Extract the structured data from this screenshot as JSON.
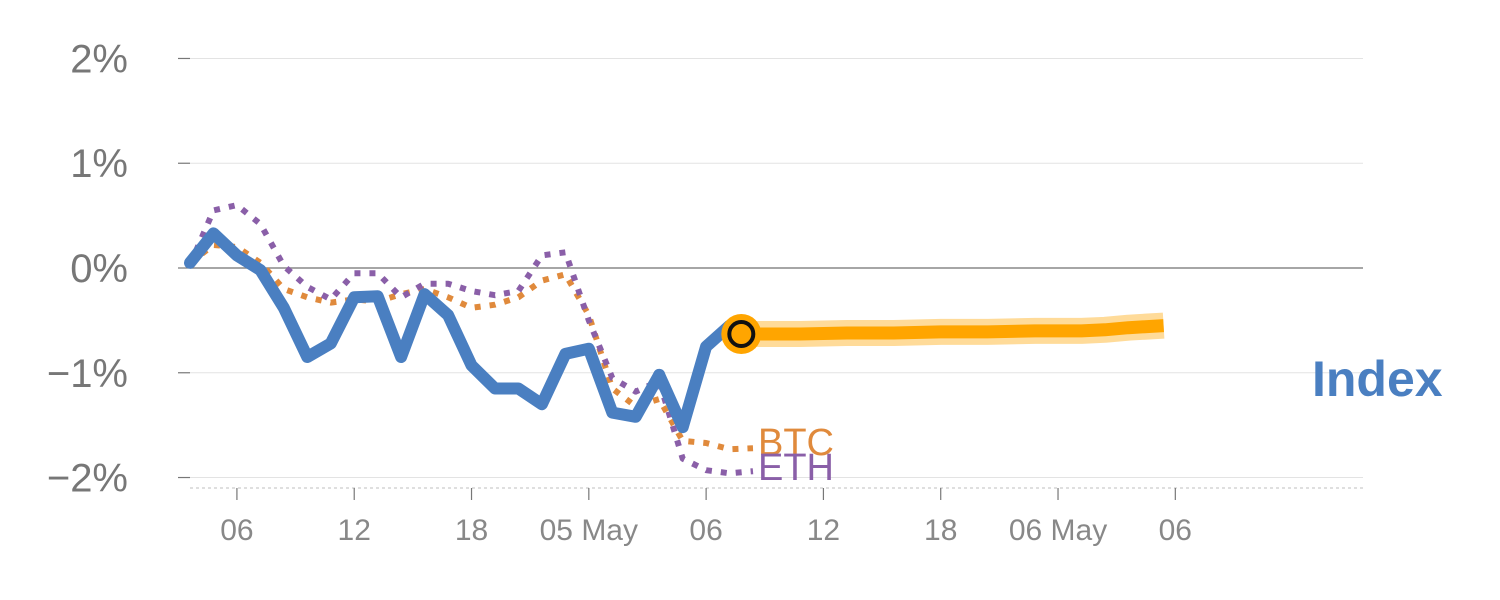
{
  "chart_data": {
    "type": "line",
    "ylim": [
      -2.1,
      2.1
    ],
    "yticks": [
      {
        "value": 2,
        "label": "2%"
      },
      {
        "value": 1,
        "label": "1%"
      },
      {
        "value": 0,
        "label": "0%"
      },
      {
        "value": -1,
        "label": "−1%"
      },
      {
        "value": -2,
        "label": "−2%"
      }
    ],
    "xlim": [
      0,
      50
    ],
    "xticks": [
      {
        "value": 2,
        "label": "06"
      },
      {
        "value": 7,
        "label": "12"
      },
      {
        "value": 12,
        "label": "18"
      },
      {
        "value": 17,
        "label": "05 May"
      },
      {
        "value": 22,
        "label": "06"
      },
      {
        "value": 27,
        "label": "12"
      },
      {
        "value": 32,
        "label": "18"
      },
      {
        "value": 37,
        "label": "06 May"
      },
      {
        "value": 42,
        "label": "06"
      }
    ],
    "series": [
      {
        "name": "Index",
        "color": "#4a7fc1",
        "style": "solid",
        "x": [
          0,
          1,
          2,
          3,
          4,
          5,
          6,
          7,
          8,
          9,
          10,
          11,
          12,
          13,
          14,
          15,
          16,
          17,
          18,
          19,
          20
        ],
        "y": [
          0.05,
          0.33,
          0.12,
          -0.02,
          -0.38,
          -0.85,
          -0.72,
          -0.28,
          -0.27,
          -0.85,
          -0.25,
          -0.45,
          -0.93,
          -1.15,
          -1.15,
          -1.3,
          -0.82,
          -0.77,
          -1.38,
          -1.42,
          -1.02
        ]
      },
      {
        "name": "Index",
        "color": "#4a7fc1",
        "style": "solid",
        "x": [
          20,
          21,
          22,
          23
        ],
        "y": [
          -1.02,
          -1.52,
          -0.75,
          -0.55
        ]
      },
      {
        "name": "BTC",
        "color": "#e08a3c",
        "style": "dotted",
        "x": [
          0,
          1,
          2,
          3,
          4,
          5,
          6,
          7,
          8,
          9,
          10,
          11,
          12,
          13,
          14,
          15,
          16,
          17,
          18,
          19,
          20,
          21,
          22,
          23,
          24
        ],
        "y": [
          0.05,
          0.22,
          0.2,
          0.05,
          -0.2,
          -0.28,
          -0.33,
          -0.3,
          -0.32,
          -0.25,
          -0.2,
          -0.28,
          -0.38,
          -0.35,
          -0.28,
          -0.12,
          -0.06,
          -0.45,
          -1.15,
          -1.32,
          -1.25,
          -1.65,
          -1.67,
          -1.73,
          -1.72
        ]
      },
      {
        "name": "ETH",
        "color": "#8a5fa8",
        "style": "dotted",
        "x": [
          0,
          1,
          2,
          3,
          4,
          5,
          6,
          7,
          8,
          9,
          10,
          11,
          12,
          13,
          14,
          15,
          16,
          17,
          18,
          19,
          20,
          21,
          22,
          23,
          24
        ],
        "y": [
          0.03,
          0.55,
          0.6,
          0.42,
          0.02,
          -0.18,
          -0.3,
          -0.05,
          -0.05,
          -0.28,
          -0.15,
          -0.15,
          -0.22,
          -0.26,
          -0.22,
          0.12,
          0.15,
          -0.5,
          -1.05,
          -1.18,
          -1.08,
          -1.82,
          -1.93,
          -1.96,
          -1.94
        ]
      },
      {
        "name": "Index",
        "color": "#ffa500",
        "style": "forecast",
        "x": [
          23.5,
          26,
          28,
          30,
          32,
          34,
          36,
          37,
          38,
          39,
          40,
          41.5
        ],
        "y": [
          -0.63,
          -0.63,
          -0.62,
          -0.62,
          -0.61,
          -0.61,
          -0.6,
          -0.6,
          -0.6,
          -0.59,
          -0.57,
          -0.55
        ]
      }
    ],
    "marker": {
      "x": 23.5,
      "y": -0.63
    },
    "labels": {
      "btc": "BTC",
      "eth": "ETH",
      "index": "Index"
    }
  }
}
